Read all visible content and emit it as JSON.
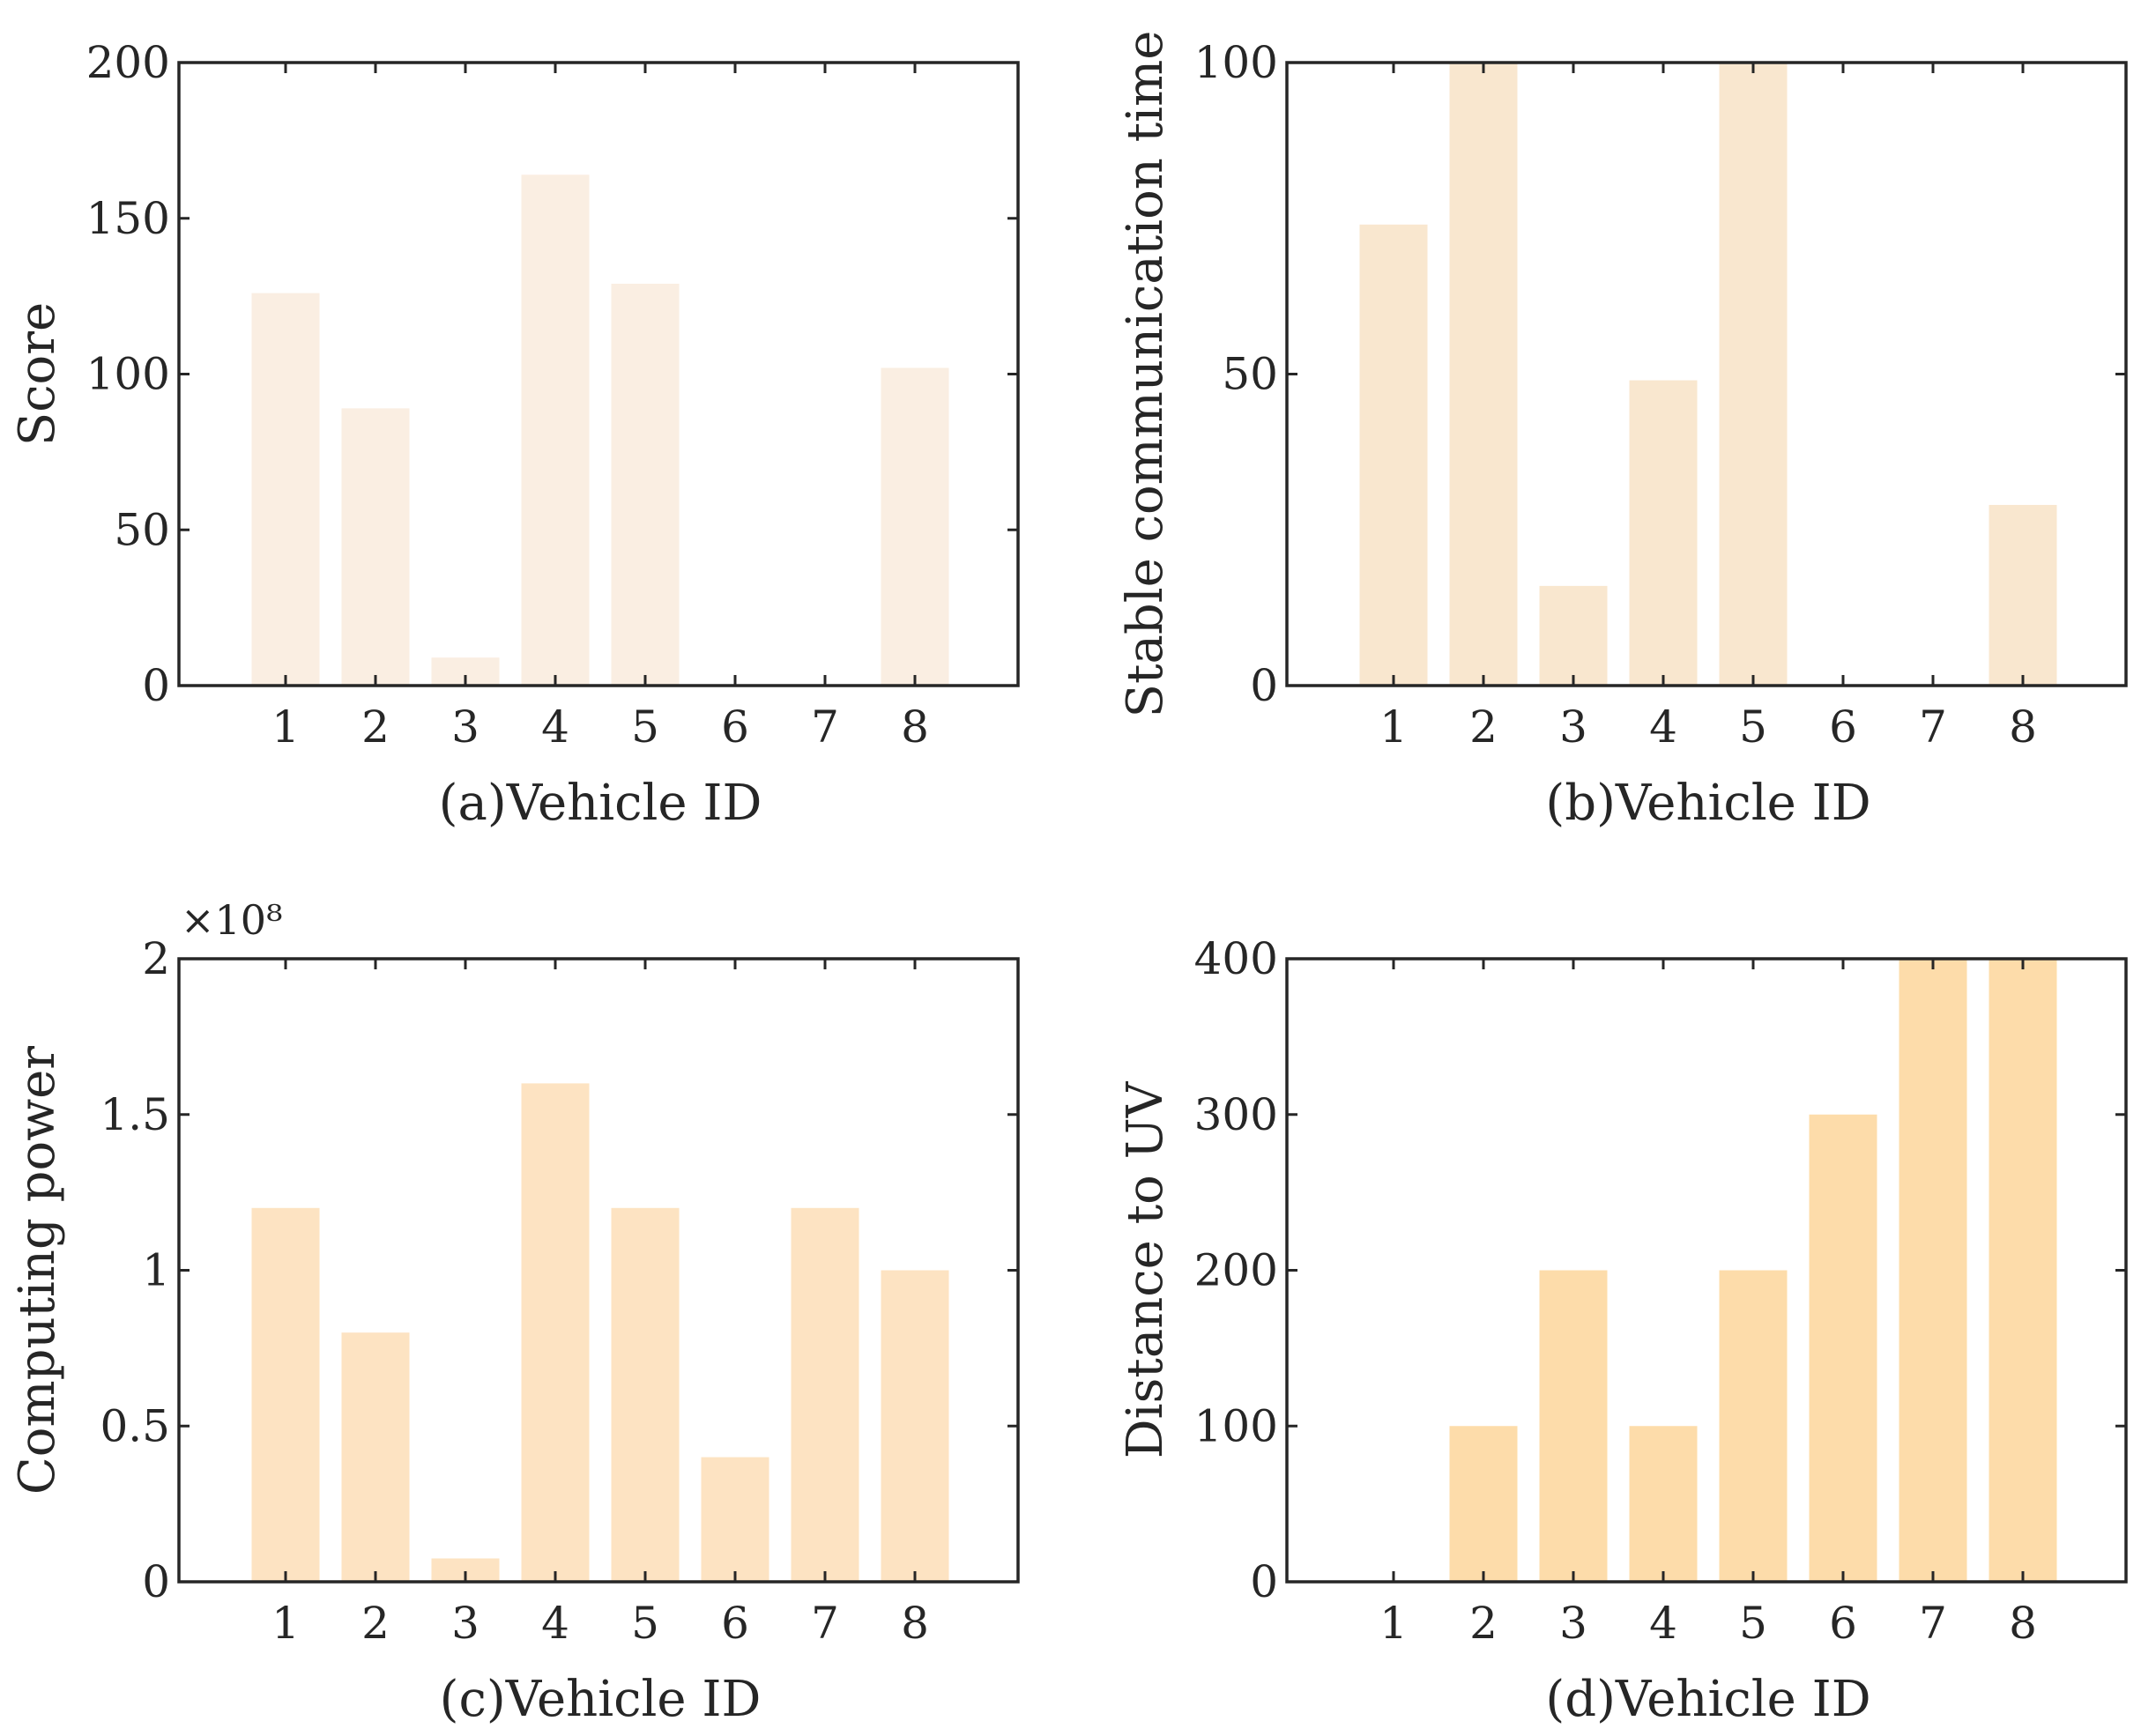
{
  "chart_data": [
    {
      "type": "bar",
      "panel": "a",
      "categories": [
        "1",
        "2",
        "3",
        "4",
        "5",
        "6",
        "7",
        "8"
      ],
      "values": [
        126,
        89,
        9,
        164,
        129,
        0,
        0,
        102
      ],
      "xlabel": "(a)Vehicle ID",
      "ylabel": "Score",
      "ylim": [
        0,
        200
      ],
      "yticks": [
        0,
        50,
        100,
        150,
        200
      ],
      "ytick_labels": [
        "0",
        "50",
        "100",
        "150",
        "200"
      ],
      "exponent_label": "",
      "bar_color": "#FAEEE2",
      "grid": false
    },
    {
      "type": "bar",
      "panel": "b",
      "categories": [
        "1",
        "2",
        "3",
        "4",
        "5",
        "6",
        "7",
        "8"
      ],
      "values": [
        74,
        100,
        16,
        49,
        100,
        0,
        0,
        29
      ],
      "xlabel": "(b)Vehicle ID",
      "ylabel": "Stable communication time",
      "ylim": [
        0,
        100
      ],
      "yticks": [
        0,
        50,
        100
      ],
      "ytick_labels": [
        "0",
        "50",
        "100"
      ],
      "exponent_label": "",
      "bar_color": "#F9E7CF",
      "grid": false
    },
    {
      "type": "bar",
      "panel": "c",
      "categories": [
        "1",
        "2",
        "3",
        "4",
        "5",
        "6",
        "7",
        "8"
      ],
      "values": [
        120000000,
        80000000,
        7500000,
        160000000,
        120000000,
        40000000,
        120000000,
        100000000
      ],
      "xlabel": "(c)Vehicle ID",
      "ylabel": "Computing power",
      "ylim": [
        0,
        200000000
      ],
      "yticks": [
        0,
        50000000,
        100000000,
        150000000,
        200000000
      ],
      "ytick_labels": [
        "0",
        "0.5",
        "1",
        "1.5",
        "2"
      ],
      "exponent_label": "×10⁸",
      "bar_color": "#FDE3C2",
      "grid": false
    },
    {
      "type": "bar",
      "panel": "d",
      "categories": [
        "1",
        "2",
        "3",
        "4",
        "5",
        "6",
        "7",
        "8"
      ],
      "values": [
        0,
        100,
        200,
        100,
        200,
        300,
        400,
        400
      ],
      "xlabel": "(d)Vehicle ID",
      "ylabel": "Distance to UV",
      "ylim": [
        0,
        400
      ],
      "yticks": [
        0,
        100,
        200,
        300,
        400
      ],
      "ytick_labels": [
        "0",
        "100",
        "200",
        "300",
        "400"
      ],
      "exponent_label": "",
      "bar_color": "#FDDCAA",
      "grid": false
    }
  ]
}
